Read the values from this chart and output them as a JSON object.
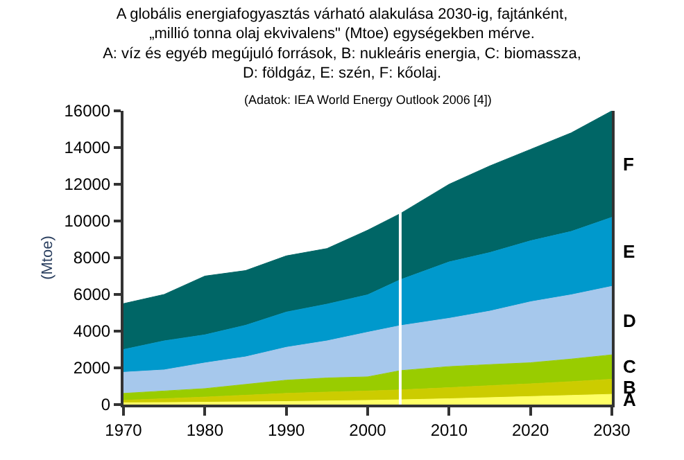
{
  "chart_data": {
    "type": "area",
    "stacked": true,
    "title": "A globális energiafogyasztás várható alakulása 2030-ig, fajtánként,\n„millió tonna olaj ekvivalens\" (Mtoe) egységekben mérve.",
    "subtitle": "A: víz és egyéb megújuló források, B: nukleáris energia, C: biomassza,\nD: földgáz, E: szén, F: kőolaj.",
    "annotations": [
      "(Adatok: IEA World Energy Outlook 2006 [4])"
    ],
    "ylabel": "(Mtoe)",
    "x": [
      1970,
      1975,
      1980,
      1985,
      1990,
      1995,
      2000,
      2004,
      2010,
      2015,
      2020,
      2025,
      2030
    ],
    "series": [
      {
        "name": "A",
        "color": "#ffff66",
        "values": [
          100,
          110,
          130,
          150,
          170,
          200,
          230,
          260,
          320,
          380,
          440,
          500,
          560
        ]
      },
      {
        "name": "B",
        "color": "#cccc00",
        "values": [
          130,
          210,
          280,
          360,
          440,
          480,
          510,
          540,
          600,
          650,
          690,
          750,
          820
        ]
      },
      {
        "name": "C",
        "color": "#99cc00",
        "values": [
          380,
          420,
          460,
          590,
          720,
          770,
          770,
          1050,
          1150,
          1150,
          1150,
          1230,
          1330
        ]
      },
      {
        "name": "D",
        "color": "#a6c8ec",
        "values": [
          1150,
          1150,
          1400,
          1500,
          1790,
          2020,
          2430,
          2450,
          2630,
          2910,
          3320,
          3500,
          3730
        ]
      },
      {
        "name": "E",
        "color": "#0099cc",
        "values": [
          1240,
          1580,
          1530,
          1720,
          1920,
          2000,
          2040,
          2500,
          3070,
          3190,
          3320,
          3450,
          3760
        ]
      },
      {
        "name": "F",
        "color": "#006666",
        "values": [
          2500,
          2530,
          3200,
          2980,
          3060,
          3030,
          3520,
          3600,
          4230,
          4720,
          4980,
          5370,
          5800
        ]
      }
    ],
    "xlim": [
      1970,
      2030
    ],
    "xticks": [
      1970,
      1980,
      1990,
      2000,
      2010,
      2020,
      2030
    ],
    "ylim": [
      0,
      16000
    ],
    "yticks": [
      0,
      2000,
      4000,
      6000,
      8000,
      10000,
      12000,
      14000,
      16000
    ],
    "ref_lines": [
      {
        "axis": "x",
        "value": 2004,
        "color": "#ffffff"
      }
    ]
  }
}
